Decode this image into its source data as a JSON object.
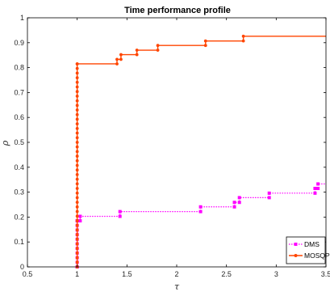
{
  "chart_data": {
    "type": "line",
    "title": "Time performance profile",
    "xlabel": "τ",
    "ylabel": "ρ",
    "xlim": [
      0.5,
      3.5
    ],
    "ylim": [
      0,
      1
    ],
    "xticks": [
      "0.5",
      "1",
      "1.5",
      "2",
      "2.5",
      "3",
      "3.5"
    ],
    "yticks": [
      "0",
      "0.1",
      "0.2",
      "0.3",
      "0.4",
      "0.5",
      "0.6",
      "0.7",
      "0.8",
      "0.9",
      "1"
    ],
    "grid": false,
    "legend_position": "bottom-right",
    "series": [
      {
        "name": "DMS",
        "color": "#ff00ff",
        "style": "dotted",
        "marker": "square",
        "points": [
          [
            1.0,
            0.0
          ],
          [
            1.0,
            0.185
          ],
          [
            1.03,
            0.185
          ],
          [
            1.03,
            0.203
          ],
          [
            1.43,
            0.203
          ],
          [
            1.43,
            0.222
          ],
          [
            2.24,
            0.222
          ],
          [
            2.24,
            0.241
          ],
          [
            2.58,
            0.241
          ],
          [
            2.58,
            0.259
          ],
          [
            2.63,
            0.259
          ],
          [
            2.63,
            0.278
          ],
          [
            2.93,
            0.278
          ],
          [
            2.93,
            0.296
          ],
          [
            3.39,
            0.296
          ],
          [
            3.39,
            0.315
          ],
          [
            3.42,
            0.315
          ],
          [
            3.42,
            0.333
          ],
          [
            3.5,
            0.333
          ]
        ]
      },
      {
        "name": "MOSQP",
        "color": "#ff4500",
        "style": "solid",
        "marker": "circle",
        "points": [
          [
            1.0,
            0.0
          ],
          [
            1.0,
            0.815
          ],
          [
            1.4,
            0.815
          ],
          [
            1.4,
            0.833
          ],
          [
            1.44,
            0.833
          ],
          [
            1.44,
            0.852
          ],
          [
            1.6,
            0.852
          ],
          [
            1.6,
            0.87
          ],
          [
            1.81,
            0.87
          ],
          [
            1.81,
            0.889
          ],
          [
            2.29,
            0.889
          ],
          [
            2.29,
            0.907
          ],
          [
            2.67,
            0.907
          ],
          [
            2.67,
            0.926
          ],
          [
            3.5,
            0.926
          ]
        ]
      }
    ]
  }
}
